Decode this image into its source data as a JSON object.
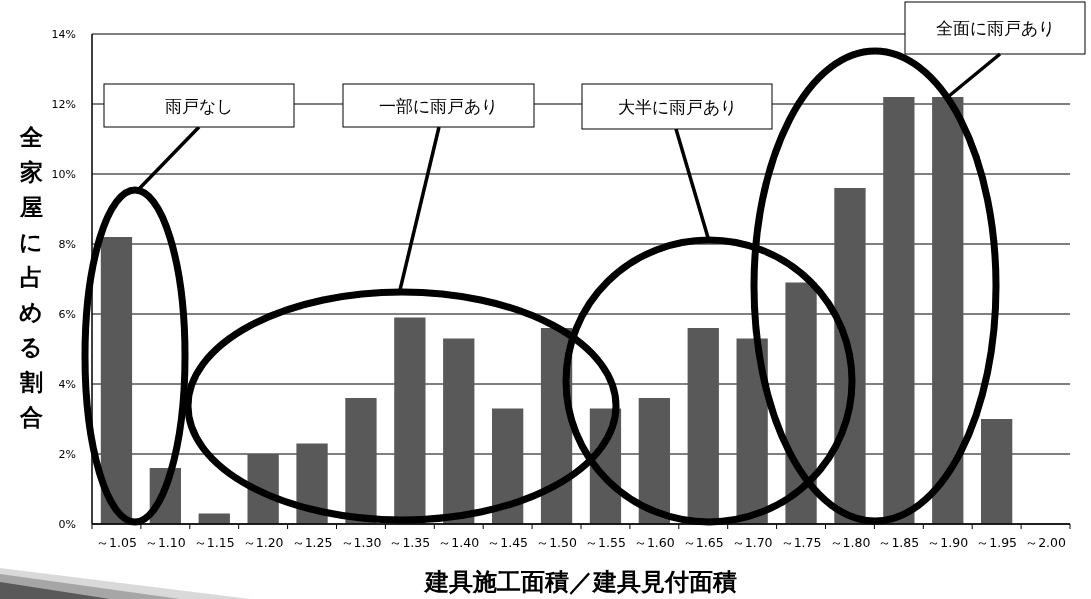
{
  "chart_data": {
    "type": "bar",
    "xlabel": "建具施工面積／建具見付面積",
    "ylabel": "全家屋に占める割合",
    "categories": [
      "～1.05",
      "～1.10",
      "～1.15",
      "～1.20",
      "～1.25",
      "～1.30",
      "～1.35",
      "～1.40",
      "～1.45",
      "～1.50",
      "～1.55",
      "～1.60",
      "～1.65",
      "～1.70",
      "～1.75",
      "～1.80",
      "～1.85",
      "～1.90",
      "～1.95",
      "～2.00"
    ],
    "values": [
      8.2,
      1.6,
      0.3,
      2.0,
      2.3,
      3.6,
      5.9,
      5.3,
      3.3,
      5.6,
      3.3,
      3.6,
      5.6,
      5.3,
      6.9,
      9.6,
      12.2,
      12.2,
      3.0,
      null
    ],
    "color": "#595959",
    "ylim": [
      0,
      14
    ],
    "yticks": [
      {
        "value": 0,
        "label": "0%"
      },
      {
        "value": 2,
        "label": "2%"
      },
      {
        "value": 4,
        "label": "4%"
      },
      {
        "value": 6,
        "label": "6%"
      },
      {
        "value": 8,
        "label": "8%"
      },
      {
        "value": 10,
        "label": "10%"
      },
      {
        "value": 12,
        "label": "12%"
      },
      {
        "value": 14,
        "label": "14%"
      }
    ],
    "grid": "y",
    "annotations": [
      "雨戸なし",
      "一部に雨戸あり",
      "大半に雨戸あり",
      {
        "text": "全面に雨戸あり",
        "x": "～1.90",
        "y": 12.2
      }
    ]
  }
}
